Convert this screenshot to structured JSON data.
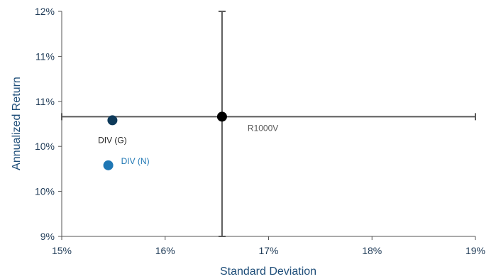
{
  "chart_data": {
    "type": "scatter",
    "title": "",
    "xlabel": "Standard Deviation",
    "ylabel": "Annualized Return",
    "xlim": [
      0.15,
      0.19
    ],
    "ylim": [
      0.09,
      0.115
    ],
    "x_ticks": [
      0.15,
      0.16,
      0.17,
      0.18,
      0.19
    ],
    "x_tick_labels": [
      "15%",
      "16%",
      "17%",
      "18%",
      "19%"
    ],
    "y_ticks": [
      0.09,
      0.095,
      0.1,
      0.105,
      0.11,
      0.115
    ],
    "y_tick_labels": [
      "9%",
      "10%",
      "10%",
      "11%",
      "11%",
      "12%"
    ],
    "grid": false,
    "legend": "none",
    "crosshair": {
      "x": 0.1655,
      "y": 0.1033
    },
    "points": [
      {
        "label": "R1000V",
        "x": 0.1655,
        "y": 0.1033,
        "color": "#000000",
        "label_color": "#555555"
      },
      {
        "label": "DIV (G)",
        "x": 0.1549,
        "y": 0.1029,
        "color": "#0e3a5a",
        "label_color": "#1f1f1f"
      },
      {
        "label": "DIV (N)",
        "x": 0.1545,
        "y": 0.0979,
        "color": "#1f77b4",
        "label_color": "#1f77b4"
      }
    ]
  }
}
